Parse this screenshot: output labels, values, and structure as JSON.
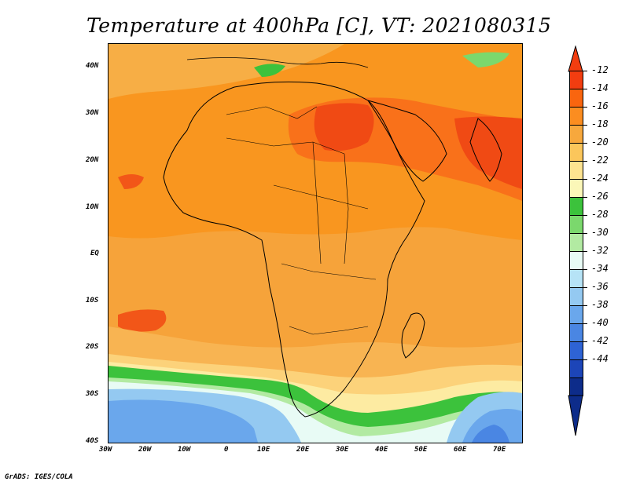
{
  "title": "Temperature at 400hPa [C], VT: 2021080315",
  "credit": "GrADS: IGES/COLA",
  "axes": {
    "x_ticks": [
      "30W",
      "20W",
      "10W",
      "0",
      "10E",
      "20E",
      "30E",
      "40E",
      "50E",
      "60E",
      "70E"
    ],
    "y_ticks": [
      "40N",
      "30N",
      "20N",
      "10N",
      "EQ",
      "10S",
      "20S",
      "30S",
      "40S"
    ],
    "lon_range": [
      -30,
      75
    ],
    "lat_range": [
      -40,
      45
    ]
  },
  "colorbar": {
    "labels": [
      "-12",
      "-14",
      "-16",
      "-18",
      "-20",
      "-22",
      "-24",
      "-26",
      "-28",
      "-30",
      "-32",
      "-34",
      "-36",
      "-38",
      "-40",
      "-42",
      "-44"
    ],
    "colors": [
      "#f23d10",
      "#f9650f",
      "#fb8d20",
      "#f7a83d",
      "#fbc65b",
      "#fde390",
      "#fbf7b8",
      "#3cc23c",
      "#7bd86d",
      "#b2eaa2",
      "#e8fbf5",
      "#b6e3f6",
      "#94c9f1",
      "#6aa7ec",
      "#4a86e3",
      "#2e63d4",
      "#1c45b8",
      "#0d2c8a"
    ]
  }
}
